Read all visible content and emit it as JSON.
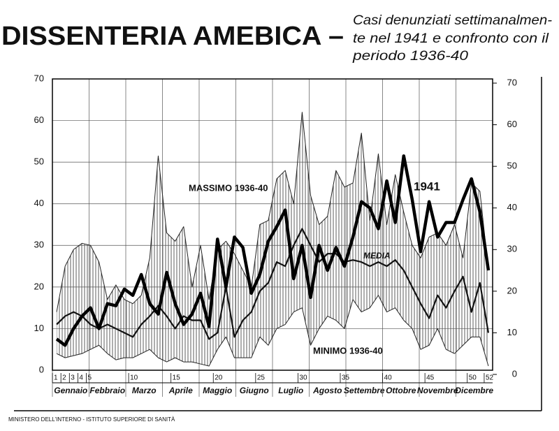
{
  "chart_data": {
    "type": "line",
    "title": "DISSENTERIA AMEBICA –",
    "subtitle": [
      "Casi denunziati settimanalmen-",
      "te nel 1941 e confronto con il",
      "periodo 1936-40"
    ],
    "footer": "MINISTERO DELL'INTERNO - ISTITUTO SUPERIORE DI SANITÀ",
    "months": [
      "Gennaio",
      "Febbraio",
      "Marzo",
      "Aprile",
      "Maggio",
      "Giugno",
      "Luglio",
      "Agosto",
      "Settembre",
      "Ottobre",
      "Novembre",
      "Dicembre"
    ],
    "x": [
      1,
      2,
      3,
      4,
      5,
      6,
      7,
      8,
      9,
      10,
      11,
      12,
      13,
      14,
      15,
      16,
      17,
      18,
      19,
      20,
      21,
      22,
      23,
      24,
      25,
      26,
      27,
      28,
      29,
      30,
      31,
      32,
      33,
      34,
      35,
      36,
      37,
      38,
      39,
      40,
      41,
      42,
      43,
      44,
      45,
      46,
      47,
      48,
      49,
      50,
      51,
      52
    ],
    "xlim": [
      0.5,
      52.5
    ],
    "xticks": [
      1,
      2,
      3,
      4,
      5,
      10,
      15,
      20,
      25,
      30,
      35,
      40,
      45,
      50,
      52
    ],
    "ylim": [
      0,
      70
    ],
    "yticks": [
      0,
      10,
      20,
      30,
      40,
      50,
      60,
      70
    ],
    "y2lim": [
      0,
      70
    ],
    "y2ticks": [
      0,
      10,
      20,
      30,
      40,
      50,
      60,
      70
    ],
    "grid": true,
    "series": [
      {
        "name": "MASSIMO 1936-40",
        "color": "#222",
        "width": 1,
        "values": [
          14,
          25,
          29,
          30.5,
          30,
          26,
          17,
          20.5,
          17,
          16,
          18,
          27,
          51.5,
          33,
          31,
          34.5,
          20,
          30,
          17,
          29,
          31,
          28,
          24,
          20,
          35,
          36,
          46,
          48,
          40,
          62,
          42,
          35,
          37,
          48,
          44,
          45,
          57,
          36,
          52,
          35,
          47,
          38,
          30,
          27,
          32,
          33,
          30,
          35,
          27,
          45,
          43,
          24
        ]
      },
      {
        "name": "MINIMO 1936-40",
        "color": "#222",
        "width": 1,
        "values": [
          4,
          3,
          3.5,
          4,
          5,
          6,
          4,
          2.5,
          3,
          3,
          4,
          5,
          3,
          2,
          3,
          2,
          2,
          1.5,
          1,
          5,
          8,
          3,
          3,
          3,
          8,
          6,
          10,
          11,
          14,
          15,
          6,
          10,
          13,
          12,
          10,
          17,
          14,
          15,
          18,
          14,
          15,
          12,
          10,
          5,
          6,
          10,
          5,
          4,
          6,
          8,
          8,
          1
        ]
      },
      {
        "name": "MEDIA",
        "color": "#111",
        "width": 2.2,
        "values": [
          11,
          13,
          14,
          13,
          11,
          10,
          11,
          10,
          9,
          8,
          11,
          13,
          15.5,
          13,
          10,
          13,
          12,
          12,
          7.5,
          9,
          20,
          8,
          12,
          14,
          19,
          21,
          26,
          25,
          30,
          34,
          30,
          26,
          28,
          28,
          26,
          26.5,
          26,
          25,
          26,
          25,
          26.5,
          24,
          20,
          16,
          12.5,
          18,
          15,
          19,
          22.5,
          14,
          21,
          9
        ]
      },
      {
        "name": "1941",
        "color": "#000",
        "width": 4.5,
        "values": [
          7.5,
          6,
          10,
          13,
          15,
          10,
          16,
          15.5,
          19.5,
          18,
          23,
          16,
          13.5,
          23.5,
          16,
          11,
          13.5,
          18.5,
          10.5,
          31.5,
          20,
          32,
          29.5,
          18.5,
          23,
          31,
          34.5,
          38.5,
          22,
          30,
          17.5,
          30,
          24,
          29.5,
          25,
          32,
          40.5,
          39,
          34,
          45.5,
          35.5,
          51.5,
          41,
          28.5,
          40.5,
          32,
          35.5,
          35.5,
          41,
          46,
          38,
          24
        ]
      }
    ]
  }
}
